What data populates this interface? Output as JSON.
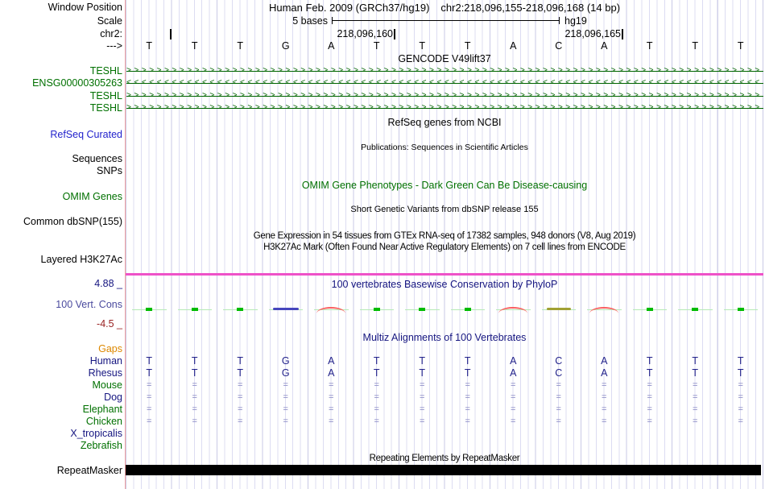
{
  "header": {
    "window_position_label": "Window Position",
    "assembly": "Human Feb. 2009 (GRCh37/hg19)",
    "range": "chr2:218,096,155-218,096,168 (14 bp)",
    "scale_label": "Scale",
    "scale_value": "5 bases",
    "genome": "hg19",
    "chrom_label": "chr2:",
    "coord_left": "218,096,160",
    "coord_right": "218,096,165",
    "strand_label": "--->"
  },
  "sequence": [
    "T",
    "T",
    "T",
    "G",
    "A",
    "T",
    "T",
    "T",
    "A",
    "C",
    "A",
    "T",
    "T",
    "T"
  ],
  "gencode": {
    "title": "GENCODE V49lift37",
    "gene_color": "#006400",
    "genes": [
      {
        "label": "TESHL",
        "strand": "+"
      },
      {
        "label": "ENSG00000305263",
        "strand": "-"
      },
      {
        "label": "TESHL",
        "strand": "+"
      },
      {
        "label": "TESHL",
        "strand": "+"
      }
    ]
  },
  "tracks": {
    "refseq": {
      "center_title": "RefSeq genes from NCBI",
      "label": "RefSeq Curated"
    },
    "publications": {
      "center_title": "Publications: Sequences in Scientific Articles",
      "label_sequences": "Sequences",
      "label_snps": "SNPs"
    },
    "omim": {
      "center_title": "OMIM Gene Phenotypes - Dark Green Can Be Disease-causing",
      "label": "OMIM Genes",
      "accent_color": "#007000"
    },
    "dbsnp": {
      "center_title": "Short Genetic Variants from dbSNP release 155",
      "label": "Common dbSNP(155)"
    },
    "gtex": {
      "center_title": "Gene Expression in 54 tissues from GTEx RNA-seq of 17382 samples, 948 donors (V8, Aug 2019)"
    },
    "h3k27ac": {
      "center_title": "H3K27Ac Mark (Often Found Near Active Regulatory Elements) on 7 cell lines from ENCODE",
      "label": "Layered H3K27Ac",
      "baseline_color": "#ee52c8"
    },
    "conservation": {
      "center_title": "100 vertebrates Basewise Conservation by PhyloP",
      "label": "100 Vert. Cons",
      "axis_max": "4.88 _",
      "axis_min": "-4.5 _",
      "marks": [
        "green",
        "green",
        "green",
        "blue",
        "red_arc",
        "green",
        "green",
        "green",
        "red_arc",
        "olive",
        "red_arc",
        "green",
        "green",
        "green"
      ],
      "mark_colors": {
        "green": "#00bb00",
        "blue": "#4646bd",
        "olive": "#a0a034",
        "red_arc": "#f96060"
      }
    },
    "multiz": {
      "center_title": "Multiz Alignments of 100 Vertebrates",
      "rows": [
        {
          "label": "Gaps",
          "color": "#dd8800",
          "type": "empty"
        },
        {
          "label": "Human",
          "color": "#151580",
          "type": "letters"
        },
        {
          "label": "Rhesus",
          "color": "#151580",
          "type": "letters"
        },
        {
          "label": "Mouse",
          "color": "#007000",
          "type": "equals"
        },
        {
          "label": "Dog",
          "color": "#151580",
          "type": "equals"
        },
        {
          "label": "Elephant",
          "color": "#007000",
          "type": "equals"
        },
        {
          "label": "Chicken",
          "color": "#007000",
          "type": "equals"
        },
        {
          "label": "X_tropicalis",
          "color": "#151580",
          "type": "empty"
        },
        {
          "label": "Zebrafish",
          "color": "#007000",
          "type": "empty"
        }
      ]
    },
    "repeatmasker": {
      "center_title": "Repeating Elements by RepeatMasker",
      "label": "RepeatMasker",
      "bar_color": "#000000"
    }
  }
}
